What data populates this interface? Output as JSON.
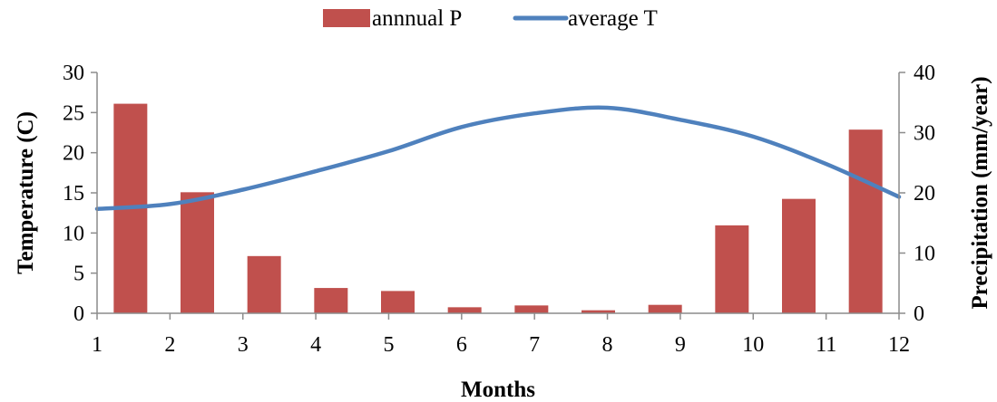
{
  "chart_data": {
    "type": "bar+line",
    "legend": {
      "position": "top",
      "entries": [
        "annnual P",
        "average T"
      ]
    },
    "x": {
      "label": "Months",
      "range": [
        1,
        12
      ],
      "ticks": [
        "1",
        "2",
        "3",
        "4",
        "5",
        "6",
        "7",
        "8",
        "9",
        "10",
        "11",
        "12"
      ]
    },
    "y_left": {
      "label": "Temperature (C)",
      "range": [
        0,
        30
      ],
      "ticks": [
        "0",
        "5",
        "10",
        "15",
        "20",
        "25",
        "30"
      ]
    },
    "y_right": {
      "label": "Precipitation (mm/year)",
      "range": [
        0,
        40
      ],
      "ticks": [
        "0",
        "10",
        "20",
        "30",
        "40"
      ]
    },
    "series": [
      {
        "name": "annnual P",
        "kind": "bar",
        "axis": "right",
        "color": "#C0504D",
        "categories": [
          1,
          2,
          3,
          4,
          5,
          6,
          7,
          8,
          9,
          10,
          11,
          12
        ],
        "values": [
          34.8,
          20.1,
          9.5,
          4.2,
          3.7,
          1.0,
          1.3,
          0.5,
          1.4,
          14.6,
          19.0,
          30.5
        ]
      },
      {
        "name": "average T",
        "kind": "line",
        "axis": "left",
        "color": "#4F81BD",
        "x": [
          1,
          2,
          3,
          4,
          5,
          6,
          7,
          8,
          9,
          10,
          11,
          12
        ],
        "values": [
          13.0,
          13.6,
          15.4,
          17.7,
          20.2,
          23.2,
          24.9,
          25.6,
          24.1,
          22.0,
          18.6,
          14.5
        ]
      }
    ],
    "grid": false
  }
}
